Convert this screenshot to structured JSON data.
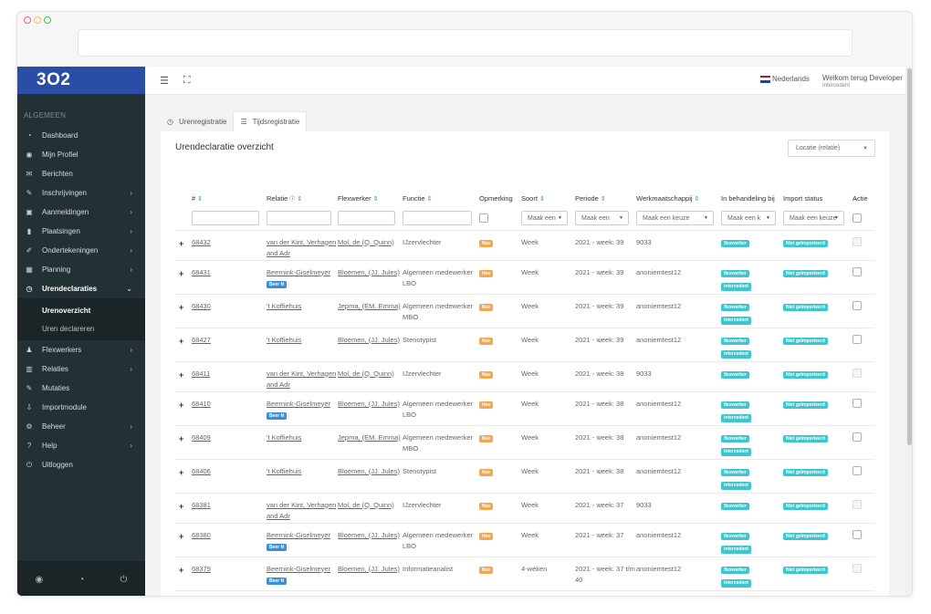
{
  "app": {
    "logo": "3O2",
    "section_label": "ALGEMEEN",
    "language": "Nederlands",
    "welcome": "Welkom terug Developer",
    "role": "Intercedent",
    "card_title": "Urendeclaratie overzicht",
    "location_select": "Locatie (relatie)"
  },
  "sidebar": {
    "items": [
      {
        "label": "Dashboard",
        "icon": "dashboard-icon",
        "glyph": "◔"
      },
      {
        "label": "Mijn Profiel",
        "icon": "profile-icon",
        "glyph": "◉"
      },
      {
        "label": "Berichten",
        "icon": "mail-icon",
        "glyph": "✉"
      },
      {
        "label": "Inschrijvingen",
        "icon": "edit-icon",
        "glyph": "✎"
      },
      {
        "label": "Aanmeldingen",
        "icon": "inbox-icon",
        "glyph": "▣"
      },
      {
        "label": "Plaatsingen",
        "icon": "bookmark-icon",
        "glyph": "▮"
      },
      {
        "label": "Ondertekeningen",
        "icon": "pen-icon",
        "glyph": "✐"
      },
      {
        "label": "Planning",
        "icon": "calendar-icon",
        "glyph": "▦"
      },
      {
        "label": "Urendeclaraties",
        "icon": "clock-icon",
        "glyph": "◷"
      },
      {
        "label": "Flexwerkers",
        "icon": "users-icon",
        "glyph": "♟"
      },
      {
        "label": "Relaties",
        "icon": "building-icon",
        "glyph": "▥"
      },
      {
        "label": "Mutaties",
        "icon": "edit-box-icon",
        "glyph": "✎"
      },
      {
        "label": "Importmodule",
        "icon": "download-icon",
        "glyph": "⇩"
      },
      {
        "label": "Beheer",
        "icon": "gear-icon",
        "glyph": "⚙"
      },
      {
        "label": "Help",
        "icon": "question-icon",
        "glyph": "?"
      },
      {
        "label": "Uitloggen",
        "icon": "power-icon",
        "glyph": "⏻"
      }
    ],
    "subitems": [
      "Urenoverzicht",
      "Uren declareren"
    ]
  },
  "tabs": [
    {
      "label": "Urenregistratie",
      "glyph": "◷"
    },
    {
      "label": "Tijdsregistratie",
      "glyph": "☰"
    }
  ],
  "table": {
    "headers": [
      "#",
      "Relatie",
      "Flexwerker",
      "Functie",
      "Opmerking",
      "Soort",
      "Periode",
      "Werkmaatschappij",
      "In behandeling bij",
      "Import status",
      "Actie"
    ],
    "filters": {
      "soort": "Maak een",
      "periode": "Maak een",
      "werkmaatschappij": "Maak een keuze",
      "behandeling": "Maak een k",
      "import": "Maak een keuze"
    },
    "rows": [
      {
        "id": "68432",
        "relatie": "van der Kint, Verhagen and Adr",
        "flex": "Mol, de (Q. Quinn)",
        "functie": "IJzervlechter",
        "opm": "Nee",
        "soort": "Week",
        "periode": "2021 - week: 39",
        "werk": "9033",
        "beh": [
          "flexwerker"
        ],
        "imp": "Niet geïmporteerd",
        "tag": "",
        "actie_disabled": true
      },
      {
        "id": "68431",
        "relatie": "Beernink-Giselmeyer",
        "flex": "Bloemen, (JJ. Jules)",
        "functie": "Algemeen medewerker LBO",
        "opm": "Nee",
        "soort": "Week",
        "periode": "2021 - week: 39",
        "werk": "anoniemtest12",
        "beh": [
          "flexwerker",
          "intercedent"
        ],
        "imp": "Niet geïmporteerd",
        "tag": "Beer N",
        "actie_disabled": false
      },
      {
        "id": "68430",
        "relatie": "'t Koffiehuis",
        "flex": "Jepma, (EM. Emma)",
        "functie": "Algemeen medewerker MBO",
        "opm": "Nee",
        "soort": "Week",
        "periode": "2021 - week: 39",
        "werk": "anoniemtest12",
        "beh": [
          "flexwerker",
          "intercedent"
        ],
        "imp": "Niet geïmporteerd",
        "tag": "",
        "actie_disabled": false
      },
      {
        "id": "68427",
        "relatie": "'t Koffiehuis",
        "flex": "Bloemen, (JJ. Jules)",
        "functie": "Stenotypist",
        "opm": "Nee",
        "soort": "Week",
        "periode": "2021 - week: 39",
        "werk": "anoniemtest12",
        "beh": [
          "flexwerker",
          "intercedent"
        ],
        "imp": "Niet geïmporteerd",
        "tag": "",
        "actie_disabled": false
      },
      {
        "id": "68411",
        "relatie": "van der Kint, Verhagen and Adr",
        "flex": "Mol, de (Q. Quinn)",
        "functie": "IJzervlechter",
        "opm": "Nee",
        "soort": "Week",
        "periode": "2021 - week: 38",
        "werk": "9033",
        "beh": [
          "flexwerker"
        ],
        "imp": "Niet geïmporteerd",
        "tag": "",
        "actie_disabled": true
      },
      {
        "id": "68410",
        "relatie": "Beernink-Giselmeyer",
        "flex": "Bloemen, (JJ. Jules)",
        "functie": "Algemeen medewerker LBO",
        "opm": "Nee",
        "soort": "Week",
        "periode": "2021 - week: 38",
        "werk": "anoniemtest12",
        "beh": [
          "flexwerker",
          "intercedent"
        ],
        "imp": "Niet geïmporteerd",
        "tag": "Beer N",
        "actie_disabled": false
      },
      {
        "id": "68409",
        "relatie": "'t Koffiehuis",
        "flex": "Jepma, (EM. Emma)",
        "functie": "Algemeen medewerker MBO",
        "opm": "Nee",
        "soort": "Week",
        "periode": "2021 - week: 38",
        "werk": "anoniemtest12",
        "beh": [
          "flexwerker",
          "intercedent"
        ],
        "imp": "Niet geïmporteerd",
        "tag": "",
        "actie_disabled": false
      },
      {
        "id": "68406",
        "relatie": "'t Koffiehuis",
        "flex": "Bloemen, (JJ. Jules)",
        "functie": "Stenotypist",
        "opm": "Nee",
        "soort": "Week",
        "periode": "2021 - week: 38",
        "werk": "anoniemtest12",
        "beh": [
          "flexwerker",
          "intercedent"
        ],
        "imp": "Niet geïmporteerd",
        "tag": "",
        "actie_disabled": false
      },
      {
        "id": "68381",
        "relatie": "van der Kint, Verhagen and Adr",
        "flex": "Mol, de (Q. Quinn)",
        "functie": "IJzervlechter",
        "opm": "Nee",
        "soort": "Week",
        "periode": "2021 - week: 37",
        "werk": "9033",
        "beh": [
          "flexwerker"
        ],
        "imp": "Niet geïmporteerd",
        "tag": "",
        "actie_disabled": true
      },
      {
        "id": "68380",
        "relatie": "Beernink-Giselmeyer",
        "flex": "Bloemen, (JJ. Jules)",
        "functie": "Algemeen medewerker LBO",
        "opm": "Nee",
        "soort": "Week",
        "periode": "2021 - week: 37",
        "werk": "anoniemtest12",
        "beh": [
          "flexwerker",
          "intercedent"
        ],
        "imp": "Niet geïmporteerd",
        "tag": "Beer N",
        "actie_disabled": false
      },
      {
        "id": "68379",
        "relatie": "Beernink-Giselmeyer",
        "flex": "Bloemen, (JJ. Jules)",
        "functie": "Informatieanalist",
        "opm": "Nee",
        "soort": "4-weken",
        "periode": "2021 - week: 37 t/m 40",
        "werk": "anoniemtest12",
        "beh": [
          "flexwerker",
          "intercedent"
        ],
        "imp": "Niet geïmporteerd",
        "tag": "Beer N",
        "actie_disabled": true
      },
      {
        "id": "68378",
        "relatie": "'t Koffiehuis",
        "flex": "Jepma, (EM. Emma)",
        "functie": "Algemeen medewerker MBO",
        "opm": "Nee",
        "soort": "Week",
        "periode": "2021 - week: 37",
        "werk": "anoniemtest12",
        "beh": [
          "flexwerker",
          "intercedent"
        ],
        "imp": "Niet geïmporteerd",
        "tag": "",
        "actie_disabled": false
      }
    ]
  },
  "colors": {
    "sidebar": "#233034",
    "logo_bg": "#2a4ea6",
    "badge_orange": "#f5a650",
    "badge_teal": "#40c5cf",
    "badge_blue": "#3b8fd6"
  }
}
